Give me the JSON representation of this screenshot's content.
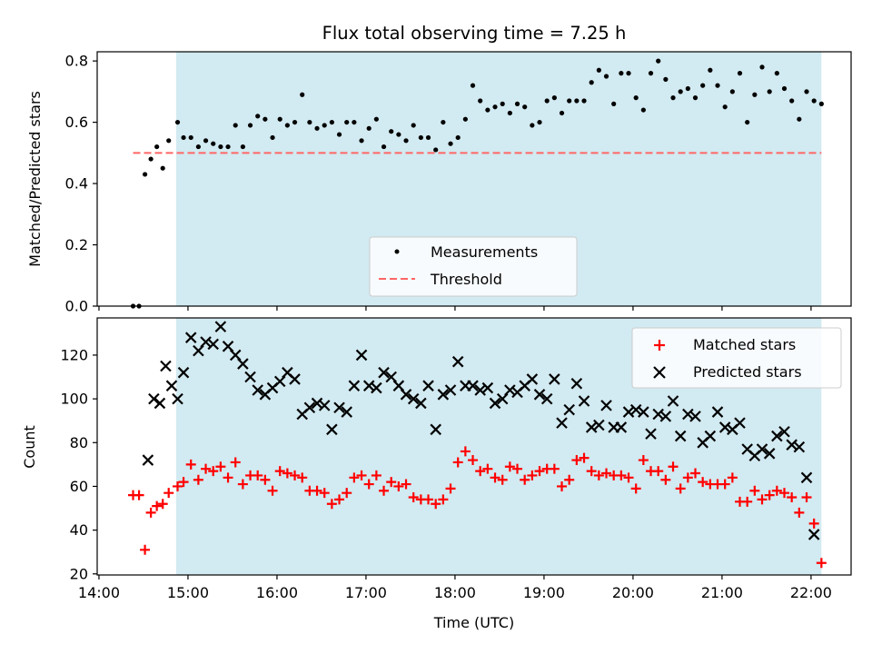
{
  "chart_data": {
    "type": "scatter",
    "title": "Flux total observing time = 7.25 h",
    "xlabel": "Time (UTC)",
    "x_ticks": [
      "14:00",
      "15:00",
      "16:00",
      "17:00",
      "18:00",
      "19:00",
      "20:00",
      "21:00",
      "22:00"
    ],
    "xlim": [
      13.98,
      22.45
    ],
    "shaded_interval": [
      "14:52",
      "22:07"
    ],
    "colors": {
      "shade": "#add8e6",
      "measurements": "#000000",
      "threshold": "#ff6666",
      "matched": "#ff0000",
      "predicted": "#000000"
    },
    "panels": [
      {
        "ylabel": "Matched/Predicted stars",
        "ylim": [
          0,
          0.83
        ],
        "y_ticks": [
          "0.0",
          "0.2",
          "0.4",
          "0.6",
          "0.8"
        ],
        "legend": {
          "placement": "lower-center",
          "entries": [
            "Measurements",
            "Threshold"
          ]
        },
        "series": [
          {
            "name": "Measurements",
            "marker": "dot",
            "x": [
              "14:23",
              "14:27",
              "14:31",
              "14:35",
              "14:39",
              "14:43",
              "14:47",
              "14:53",
              "14:57",
              "15:02",
              "15:07",
              "15:12",
              "15:17",
              "15:22",
              "15:27",
              "15:32",
              "15:37",
              "15:42",
              "15:47",
              "15:52",
              "15:57",
              "16:02",
              "16:07",
              "16:12",
              "16:17",
              "16:22",
              "16:27",
              "16:32",
              "16:37",
              "16:42",
              "16:47",
              "16:52",
              "16:57",
              "17:02",
              "17:07",
              "17:12",
              "17:17",
              "17:22",
              "17:27",
              "17:32",
              "17:37",
              "17:42",
              "17:47",
              "17:52",
              "17:57",
              "18:02",
              "18:07",
              "18:12",
              "18:17",
              "18:22",
              "18:27",
              "18:32",
              "18:37",
              "18:42",
              "18:47",
              "18:52",
              "18:57",
              "19:02",
              "19:07",
              "19:12",
              "19:17",
              "19:22",
              "19:27",
              "19:32",
              "19:37",
              "19:42",
              "19:47",
              "19:52",
              "19:57",
              "20:02",
              "20:07",
              "20:12",
              "20:17",
              "20:22",
              "20:27",
              "20:32",
              "20:37",
              "20:42",
              "20:47",
              "20:52",
              "20:57",
              "21:02",
              "21:07",
              "21:12",
              "21:17",
              "21:22",
              "21:27",
              "21:32",
              "21:37",
              "21:42",
              "21:47",
              "21:52",
              "21:57",
              "22:02",
              "22:07"
            ],
            "y": [
              0.0,
              0.0,
              0.43,
              0.48,
              0.52,
              0.45,
              0.54,
              0.6,
              0.55,
              0.55,
              0.52,
              0.54,
              0.53,
              0.52,
              0.52,
              0.59,
              0.52,
              0.59,
              0.62,
              0.61,
              0.55,
              0.61,
              0.59,
              0.6,
              0.69,
              0.6,
              0.58,
              0.59,
              0.6,
              0.56,
              0.6,
              0.6,
              0.54,
              0.58,
              0.61,
              0.52,
              0.57,
              0.56,
              0.54,
              0.59,
              0.55,
              0.55,
              0.51,
              0.6,
              0.53,
              0.55,
              0.61,
              0.72,
              0.67,
              0.64,
              0.65,
              0.66,
              0.63,
              0.66,
              0.65,
              0.59,
              0.6,
              0.67,
              0.68,
              0.63,
              0.67,
              0.67,
              0.67,
              0.73,
              0.77,
              0.75,
              0.66,
              0.76,
              0.76,
              0.68,
              0.64,
              0.76,
              0.8,
              0.74,
              0.68,
              0.7,
              0.71,
              0.68,
              0.72,
              0.77,
              0.72,
              0.65,
              0.7,
              0.76,
              0.6,
              0.69,
              0.78,
              0.7,
              0.76,
              0.71,
              0.67,
              0.61,
              0.7,
              0.67,
              0.66
            ]
          },
          {
            "name": "Threshold",
            "style": "dashed",
            "x": [
              "14:23",
              "22:07"
            ],
            "y": [
              0.5,
              0.5
            ]
          }
        ]
      },
      {
        "ylabel": "Count",
        "ylim": [
          19.5,
          137
        ],
        "y_ticks": [
          "20",
          "40",
          "60",
          "80",
          "100",
          "120"
        ],
        "legend": {
          "placement": "upper-right",
          "entries": [
            "Matched stars",
            "Predicted stars"
          ]
        },
        "series": [
          {
            "name": "Matched stars",
            "marker": "plus",
            "x": [
              "14:23",
              "14:27",
              "14:31",
              "14:35",
              "14:39",
              "14:43",
              "14:47",
              "14:53",
              "14:57",
              "15:02",
              "15:07",
              "15:12",
              "15:17",
              "15:22",
              "15:27",
              "15:32",
              "15:37",
              "15:42",
              "15:47",
              "15:52",
              "15:57",
              "16:02",
              "16:07",
              "16:12",
              "16:17",
              "16:22",
              "16:27",
              "16:32",
              "16:37",
              "16:42",
              "16:47",
              "16:52",
              "16:57",
              "17:02",
              "17:07",
              "17:12",
              "17:17",
              "17:22",
              "17:27",
              "17:32",
              "17:37",
              "17:42",
              "17:47",
              "17:52",
              "17:57",
              "18:02",
              "18:07",
              "18:12",
              "18:17",
              "18:22",
              "18:27",
              "18:32",
              "18:37",
              "18:42",
              "18:47",
              "18:52",
              "18:57",
              "19:02",
              "19:07",
              "19:12",
              "19:17",
              "19:22",
              "19:27",
              "19:32",
              "19:37",
              "19:42",
              "19:47",
              "19:52",
              "19:57",
              "20:02",
              "20:07",
              "20:12",
              "20:17",
              "20:22",
              "20:27",
              "20:32",
              "20:37",
              "20:42",
              "20:47",
              "20:52",
              "20:57",
              "21:02",
              "21:07",
              "21:12",
              "21:17",
              "21:22",
              "21:27",
              "21:32",
              "21:37",
              "21:42",
              "21:47",
              "21:52",
              "21:57",
              "22:02",
              "22:07"
            ],
            "y": [
              56,
              56,
              31,
              48,
              51,
              52,
              57,
              60,
              62,
              70,
              63,
              68,
              67,
              69,
              64,
              71,
              61,
              65,
              65,
              63,
              58,
              67,
              66,
              65,
              64,
              58,
              58,
              57,
              52,
              54,
              57,
              64,
              65,
              61,
              65,
              58,
              62,
              60,
              61,
              55,
              54,
              54,
              52,
              54,
              59,
              71,
              76,
              72,
              67,
              68,
              64,
              63,
              69,
              68,
              63,
              65,
              67,
              68,
              68,
              60,
              63,
              72,
              73,
              67,
              65,
              66,
              65,
              65,
              64,
              59,
              72,
              67,
              67,
              63,
              69,
              59,
              64,
              66,
              62,
              61,
              61,
              61,
              64,
              53,
              53,
              58,
              54,
              56,
              58,
              57,
              55,
              48,
              55,
              43,
              25
            ]
          },
          {
            "name": "Predicted stars",
            "marker": "x",
            "x": [
              "14:33",
              "14:37",
              "14:41",
              "14:45",
              "14:49",
              "14:53",
              "14:57",
              "15:02",
              "15:07",
              "15:12",
              "15:17",
              "15:22",
              "15:27",
              "15:32",
              "15:37",
              "15:42",
              "15:47",
              "15:52",
              "15:57",
              "16:02",
              "16:07",
              "16:12",
              "16:17",
              "16:22",
              "16:27",
              "16:32",
              "16:37",
              "16:42",
              "16:47",
              "16:52",
              "16:57",
              "17:02",
              "17:07",
              "17:12",
              "17:17",
              "17:22",
              "17:27",
              "17:32",
              "17:37",
              "17:42",
              "17:47",
              "17:52",
              "17:57",
              "18:02",
              "18:07",
              "18:12",
              "18:17",
              "18:22",
              "18:27",
              "18:32",
              "18:37",
              "18:42",
              "18:47",
              "18:52",
              "18:57",
              "19:02",
              "19:07",
              "19:12",
              "19:17",
              "19:22",
              "19:27",
              "19:32",
              "19:37",
              "19:42",
              "19:47",
              "19:52",
              "19:57",
              "20:02",
              "20:07",
              "20:12",
              "20:17",
              "20:22",
              "20:27",
              "20:32",
              "20:37",
              "20:42",
              "20:47",
              "20:52",
              "20:57",
              "21:02",
              "21:07",
              "21:12",
              "21:17",
              "21:22",
              "21:27",
              "21:32",
              "21:37",
              "21:42",
              "21:47",
              "21:52",
              "21:57",
              "22:02",
              "22:07"
            ],
            "y": [
              72,
              100,
              98,
              115,
              106,
              100,
              112,
              128,
              122,
              126,
              125,
              133,
              124,
              120,
              116,
              110,
              104,
              102,
              105,
              108,
              112,
              109,
              93,
              96,
              98,
              97,
              86,
              96,
              94,
              106,
              120,
              106,
              105,
              112,
              110,
              106,
              102,
              100,
              98,
              106,
              86,
              102,
              104,
              117,
              106,
              106,
              104,
              105,
              98,
              100,
              104,
              103,
              106,
              109,
              102,
              100,
              109,
              89,
              95,
              107,
              99,
              87,
              88,
              97,
              87,
              87,
              94,
              95,
              94,
              84,
              93,
              92,
              99,
              83,
              93,
              92,
              80,
              83,
              94,
              87,
              86,
              89,
              77,
              74,
              77,
              75,
              83,
              85,
              79,
              78,
              64,
              38,
              null
            ]
          }
        ]
      }
    ]
  }
}
